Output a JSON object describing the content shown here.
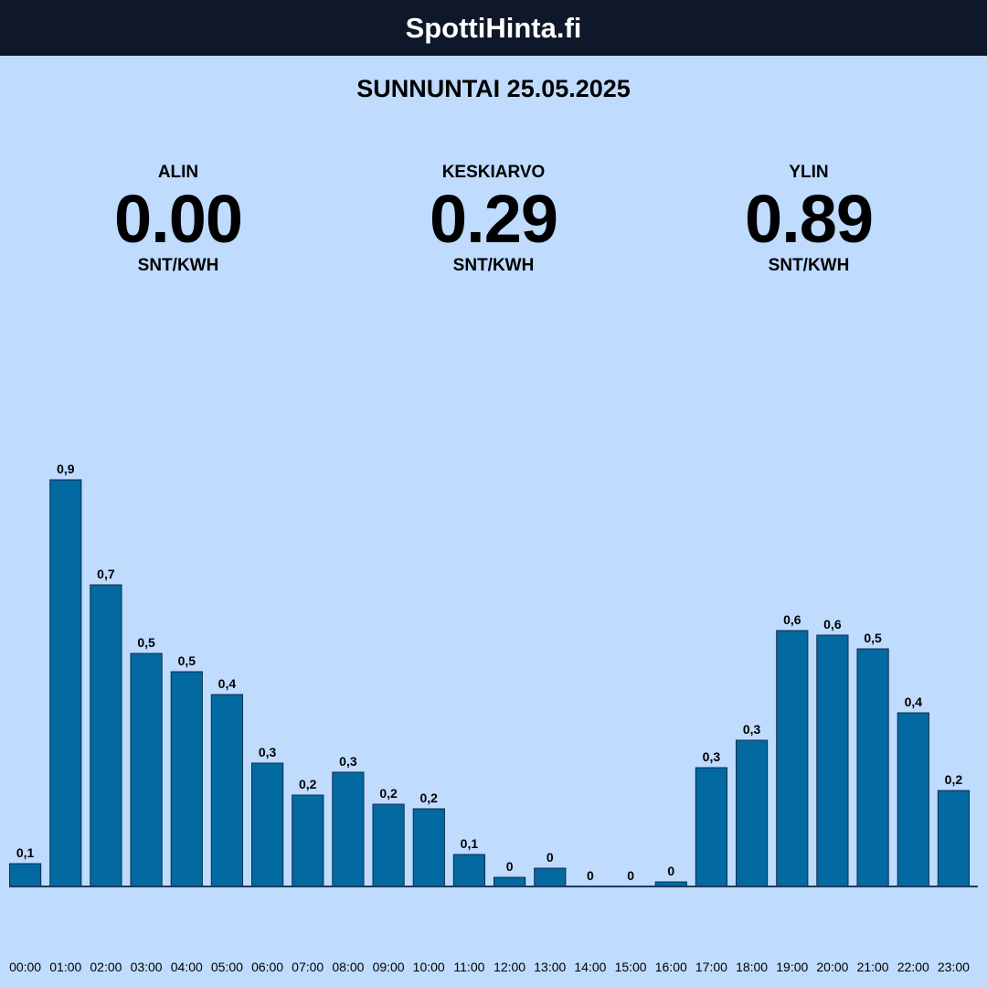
{
  "header": {
    "title": "SpottiHinta.fi"
  },
  "date_title": "SUNNUNTAI 25.05.2025",
  "stats": {
    "min": {
      "label": "ALIN",
      "value": "0.00",
      "unit": "SNT/KWH"
    },
    "avg": {
      "label": "KESKIARVO",
      "value": "0.29",
      "unit": "SNT/KWH"
    },
    "max": {
      "label": "YLIN",
      "value": "0.89",
      "unit": "SNT/KWH"
    }
  },
  "colors": {
    "bar": "#0369a1",
    "background": "#bfdbfe",
    "header": "#0f172a"
  },
  "chart_data": {
    "type": "bar",
    "categories": [
      "00:00",
      "01:00",
      "02:00",
      "03:00",
      "04:00",
      "05:00",
      "06:00",
      "07:00",
      "08:00",
      "09:00",
      "10:00",
      "11:00",
      "12:00",
      "13:00",
      "14:00",
      "15:00",
      "16:00",
      "17:00",
      "18:00",
      "19:00",
      "20:00",
      "21:00",
      "22:00",
      "23:00"
    ],
    "values": [
      0.05,
      0.89,
      0.66,
      0.51,
      0.47,
      0.42,
      0.27,
      0.2,
      0.25,
      0.18,
      0.17,
      0.07,
      0.02,
      0.04,
      0.0,
      0.0,
      0.01,
      0.26,
      0.32,
      0.56,
      0.55,
      0.52,
      0.38,
      0.21
    ],
    "data_labels": [
      "0,1",
      "0,9",
      "0,7",
      "0,5",
      "0,5",
      "0,4",
      "0,3",
      "0,2",
      "0,3",
      "0,2",
      "0,2",
      "0,1",
      "0",
      "0",
      "0",
      "0",
      "0",
      "0,3",
      "0,3",
      "0,6",
      "0,6",
      "0,5",
      "0,4",
      "0,2"
    ],
    "unit": "SNT/KWH",
    "ylim": [
      0,
      0.89
    ],
    "grid": false,
    "legend": "none"
  }
}
